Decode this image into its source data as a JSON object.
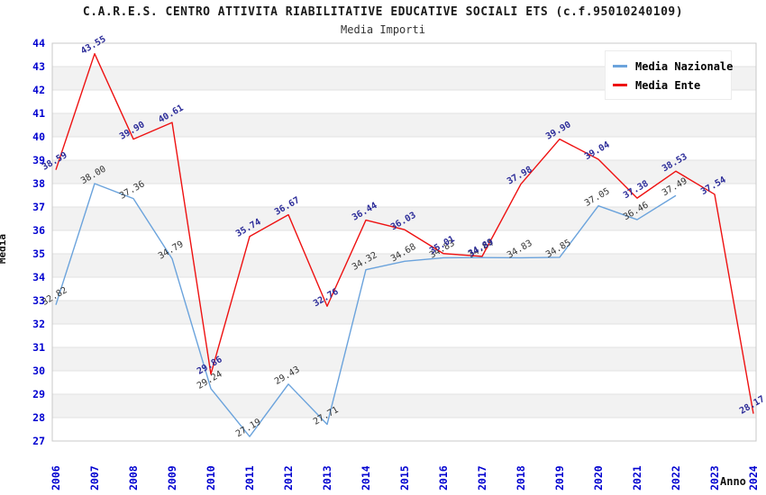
{
  "header": {
    "title": "C.A.R.E.S. CENTRO ATTIVITA RIABILITATIVE EDUCATIVE SOCIALI ETS (c.f.95010240109)",
    "subtitle": "Media Importi"
  },
  "axes": {
    "y_title": "Media",
    "x_title": "Anno",
    "y_min": 27,
    "y_max": 44,
    "y_step": 1
  },
  "legend": {
    "items": [
      {
        "label": "Media Nazionale",
        "color": "#6ba3dc"
      },
      {
        "label": "Media Ente",
        "color": "#ee1111"
      }
    ]
  },
  "colors": {
    "band": "#f2f2f2",
    "gridline": "#e2e2e2",
    "plot_border": "#c8c8c8",
    "tick_label": "#0000d0",
    "nazionale_line": "#6ba3dc",
    "nazionale_label": "#333333",
    "ente_line": "#ee1111",
    "ente_label": "#2d2d99"
  },
  "chart_data": {
    "type": "line",
    "title": "Media Importi",
    "xlabel": "Anno",
    "ylabel": "Media",
    "ylim": [
      27,
      44
    ],
    "grid": true,
    "legend_position": "top-right",
    "categories": [
      "2006",
      "2007",
      "2008",
      "2009",
      "2010",
      "2011",
      "2012",
      "2013",
      "2014",
      "2015",
      "2016",
      "2017",
      "2018",
      "2019",
      "2020",
      "2021",
      "2022",
      "2023",
      "2024"
    ],
    "series": [
      {
        "name": "Media Nazionale",
        "color": "#6ba3dc",
        "label_color": "#333333",
        "label_bold": false,
        "values": [
          32.82,
          38.0,
          37.36,
          34.79,
          29.24,
          27.19,
          29.43,
          27.71,
          34.32,
          34.68,
          34.83,
          34.84,
          34.83,
          34.85,
          37.05,
          36.46,
          37.49,
          null,
          null
        ]
      },
      {
        "name": "Media Ente",
        "color": "#ee1111",
        "label_color": "#2d2d99",
        "label_bold": true,
        "values": [
          38.59,
          43.55,
          39.9,
          40.61,
          29.86,
          35.74,
          36.67,
          32.76,
          36.44,
          36.03,
          35.01,
          34.89,
          37.98,
          39.9,
          39.04,
          37.38,
          38.53,
          37.54,
          28.17
        ]
      }
    ]
  }
}
